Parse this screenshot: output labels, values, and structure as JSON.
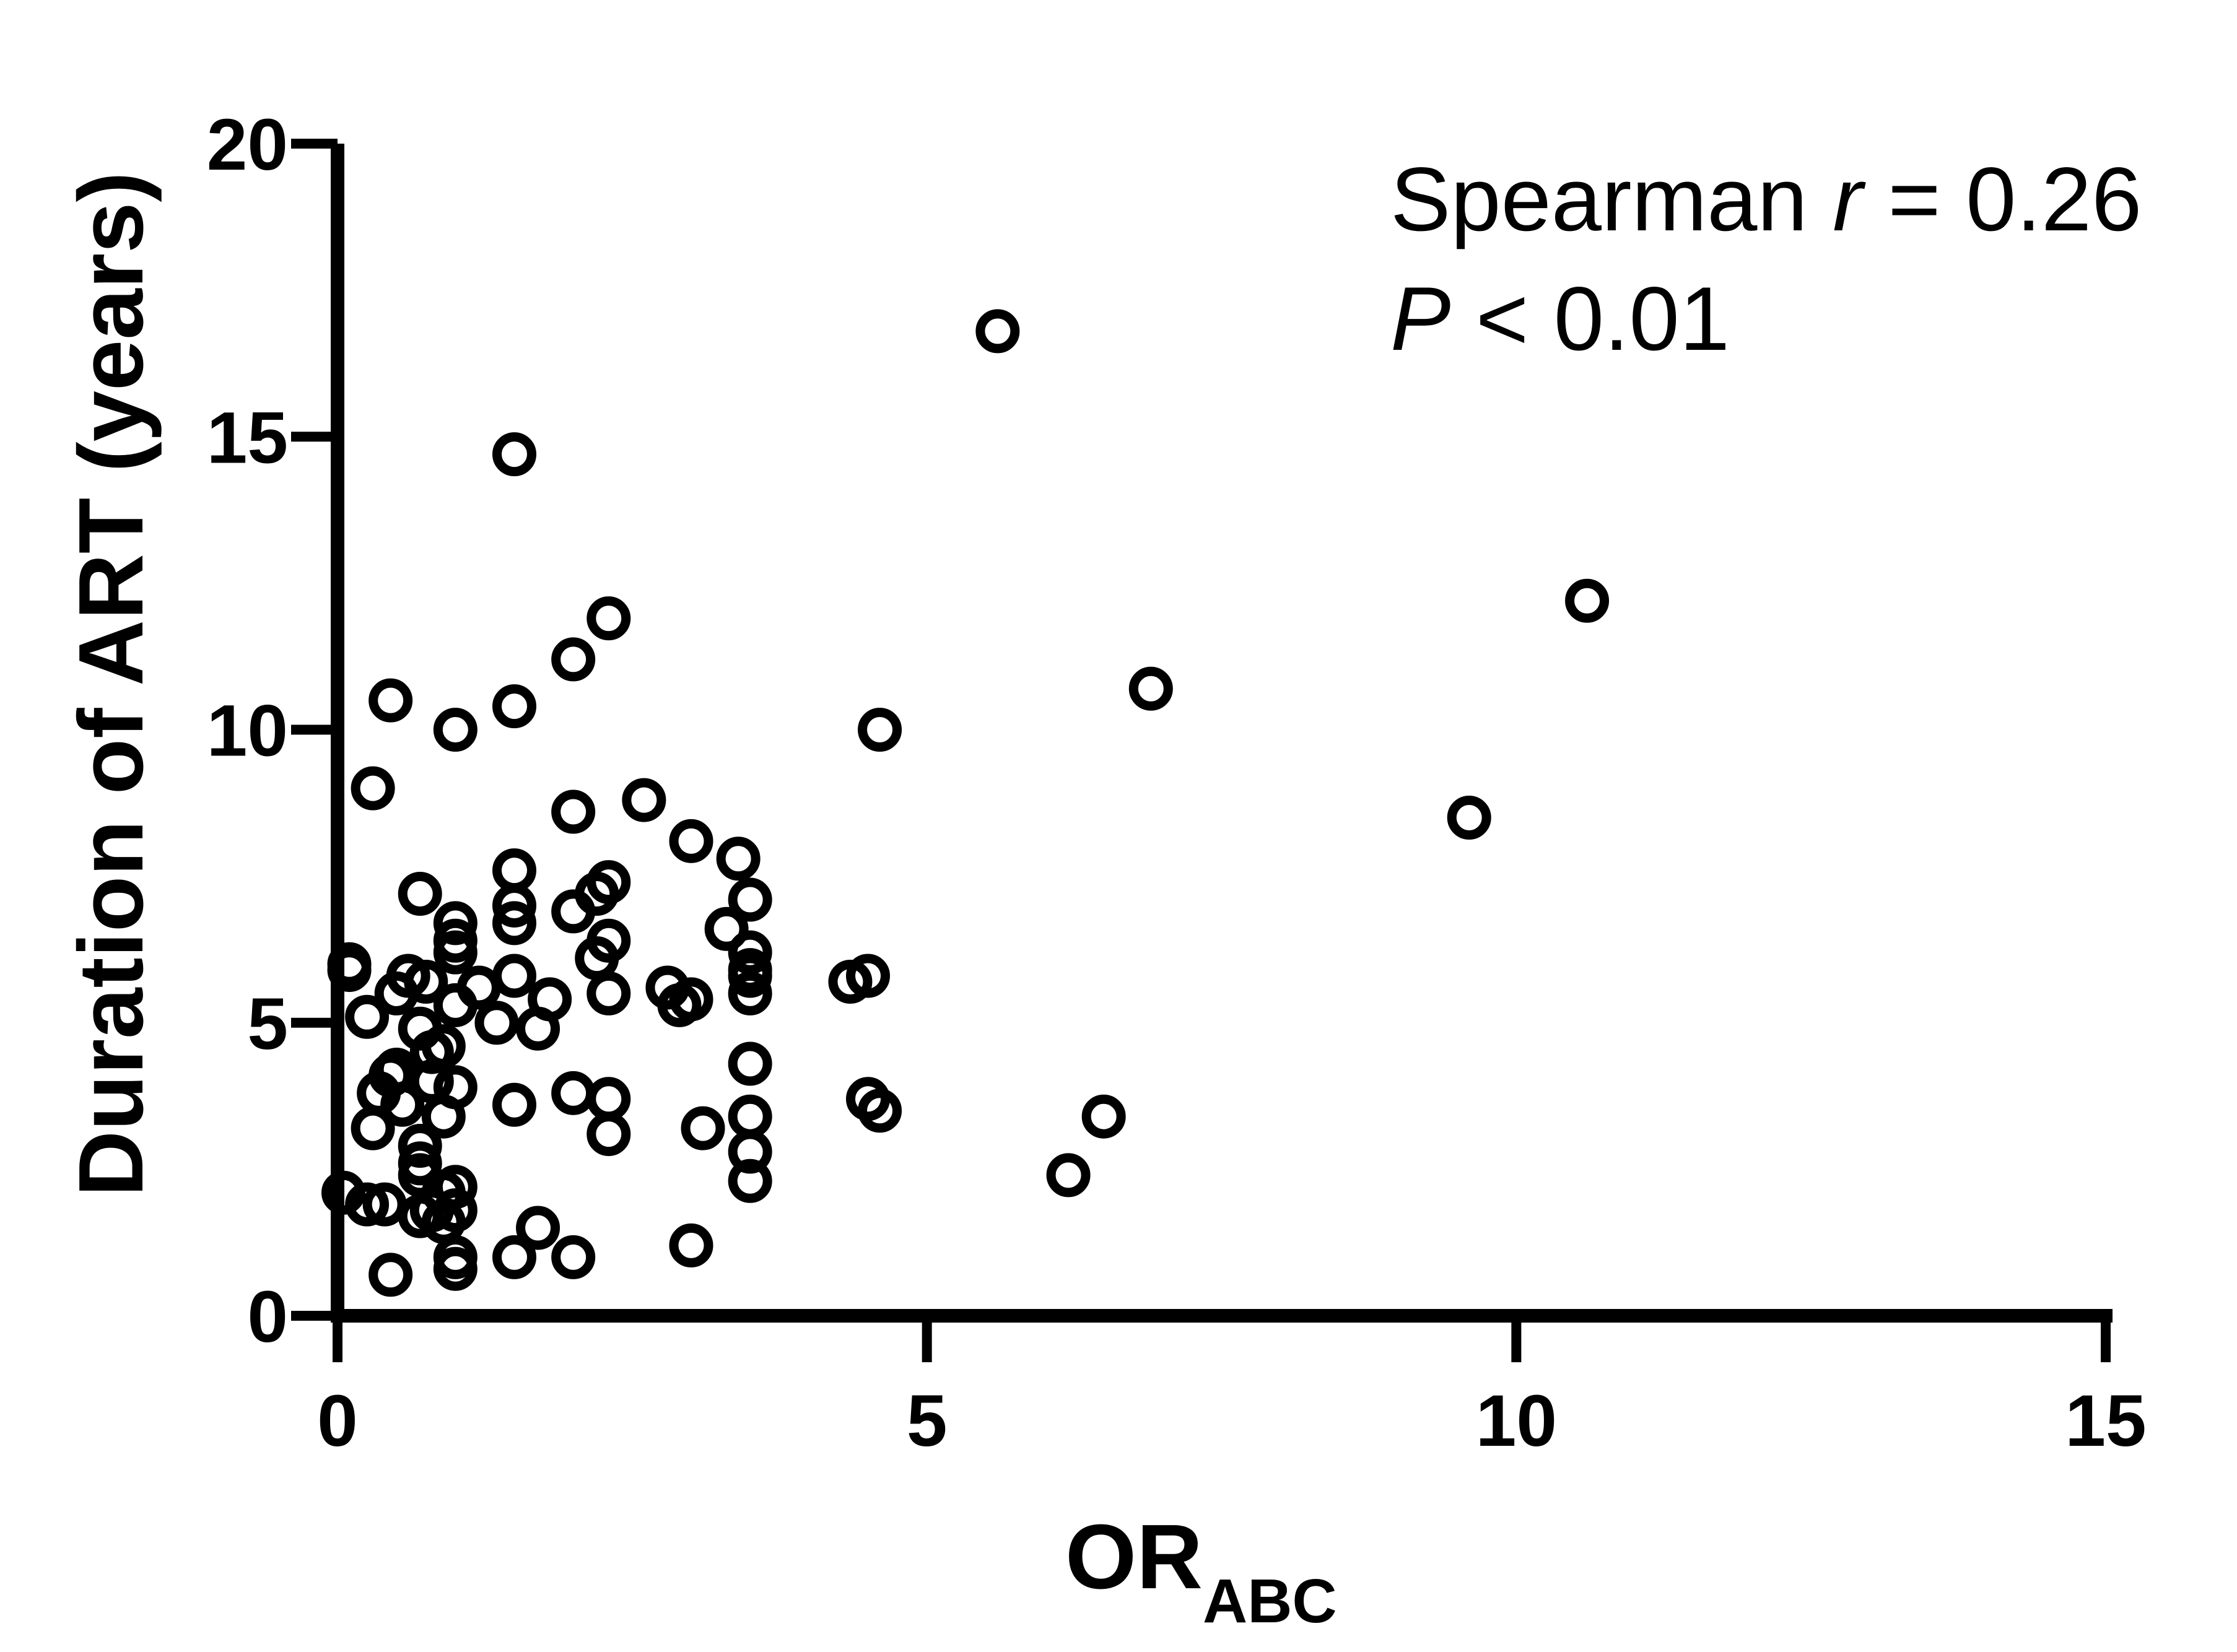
{
  "chart_data": {
    "type": "scatter",
    "xlabel": "OR",
    "xlabel_subscript": "ABC",
    "ylabel": "Duration of ART (years)",
    "xlim": [
      0,
      15
    ],
    "ylim": [
      0,
      20
    ],
    "xticks": [
      "0",
      "5",
      "10",
      "15"
    ],
    "yticks": [
      "0",
      "5",
      "10",
      "15",
      "20"
    ],
    "xtick_values": [
      0,
      5,
      10,
      15
    ],
    "ytick_values": [
      0,
      5,
      10,
      15,
      20
    ],
    "grid": false,
    "marker": "open-circle",
    "color": "#000000",
    "annotations": {
      "line1": {
        "prefix": "Spearman ",
        "var": "r",
        "suffix": " = 0.26"
      },
      "line2": {
        "var": "P",
        "suffix": " < 0.01"
      }
    },
    "series": [
      {
        "points": [
          [
            5.6,
            16.8
          ],
          [
            1.5,
            14.7
          ],
          [
            10.6,
            12.2
          ],
          [
            2.3,
            11.9
          ],
          [
            2.0,
            11.2
          ],
          [
            6.9,
            10.7
          ],
          [
            0.45,
            10.5
          ],
          [
            1.5,
            10.4
          ],
          [
            1.0,
            10.0
          ],
          [
            4.6,
            10.0
          ],
          [
            0.3,
            9.0
          ],
          [
            2.6,
            8.8
          ],
          [
            2.0,
            8.6
          ],
          [
            9.6,
            8.5
          ],
          [
            3.0,
            8.1
          ],
          [
            3.4,
            7.8
          ],
          [
            1.5,
            7.6
          ],
          [
            2.3,
            7.4
          ],
          [
            0.7,
            7.2
          ],
          [
            2.2,
            7.2
          ],
          [
            3.5,
            7.1
          ],
          [
            1.5,
            7.0
          ],
          [
            2.0,
            6.9
          ],
          [
            1.0,
            6.7
          ],
          [
            1.5,
            6.7
          ],
          [
            3.3,
            6.6
          ],
          [
            1.0,
            6.4
          ],
          [
            2.3,
            6.4
          ],
          [
            1.0,
            6.2
          ],
          [
            3.5,
            6.2
          ],
          [
            2.2,
            6.1
          ],
          [
            0.1,
            6.0
          ],
          [
            0.1,
            5.9
          ],
          [
            3.5,
            5.9
          ],
          [
            3.5,
            5.8
          ],
          [
            4.5,
            5.8
          ],
          [
            0.6,
            5.8
          ],
          [
            1.5,
            5.8
          ],
          [
            0.75,
            5.7
          ],
          [
            4.35,
            5.7
          ],
          [
            1.2,
            5.6
          ],
          [
            2.8,
            5.6
          ],
          [
            2.3,
            5.5
          ],
          [
            0.5,
            5.5
          ],
          [
            3.5,
            5.5
          ],
          [
            3.0,
            5.4
          ],
          [
            1.8,
            5.4
          ],
          [
            2.9,
            5.3
          ],
          [
            1.0,
            5.3
          ],
          [
            0.25,
            5.1
          ],
          [
            1.35,
            5.0
          ],
          [
            1.7,
            4.9
          ],
          [
            0.7,
            4.9
          ],
          [
            0.9,
            4.6
          ],
          [
            0.8,
            4.5
          ],
          [
            3.5,
            4.3
          ],
          [
            0.5,
            4.2
          ],
          [
            0.45,
            4.1
          ],
          [
            0.8,
            4.0
          ],
          [
            1.0,
            3.9
          ],
          [
            2.0,
            3.8
          ],
          [
            0.35,
            3.8
          ],
          [
            2.3,
            3.7
          ],
          [
            4.5,
            3.7
          ],
          [
            0.55,
            3.6
          ],
          [
            1.5,
            3.6
          ],
          [
            4.6,
            3.5
          ],
          [
            0.9,
            3.4
          ],
          [
            3.5,
            3.4
          ],
          [
            6.5,
            3.4
          ],
          [
            3.1,
            3.2
          ],
          [
            0.3,
            3.2
          ],
          [
            2.3,
            3.1
          ],
          [
            0.7,
            2.9
          ],
          [
            3.5,
            2.8
          ],
          [
            0.7,
            2.6
          ],
          [
            0.7,
            2.4
          ],
          [
            6.2,
            2.4
          ],
          [
            3.5,
            2.3
          ],
          [
            1.0,
            2.2
          ],
          [
            0.9,
            2.1
          ],
          [
            0.05,
            2.1
          ],
          [
            0.25,
            1.9
          ],
          [
            0.4,
            1.9
          ],
          [
            0.8,
            1.8
          ],
          [
            1.0,
            1.8
          ],
          [
            0.7,
            1.7
          ],
          [
            0.9,
            1.6
          ],
          [
            1.7,
            1.5
          ],
          [
            3.0,
            1.2
          ],
          [
            1.0,
            1.0
          ],
          [
            1.5,
            1.0
          ],
          [
            2.0,
            1.0
          ],
          [
            1.0,
            0.8
          ],
          [
            0.45,
            0.7
          ]
        ]
      }
    ]
  }
}
